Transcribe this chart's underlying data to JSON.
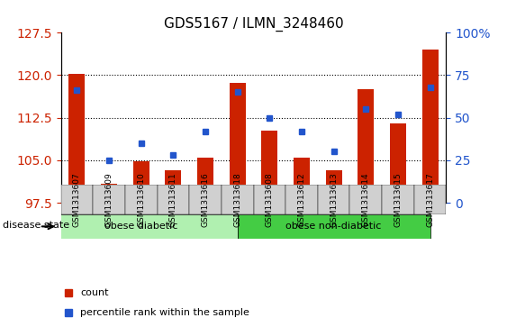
{
  "title": "GDS5167 / ILMN_3248460",
  "samples": [
    "GSM1313607",
    "GSM1313609",
    "GSM1313610",
    "GSM1313611",
    "GSM1313616",
    "GSM1313618",
    "GSM1313608",
    "GSM1313612",
    "GSM1313613",
    "GSM1313614",
    "GSM1313615",
    "GSM1313617"
  ],
  "bar_values": [
    120.3,
    100.8,
    104.8,
    103.2,
    105.5,
    118.6,
    110.2,
    105.5,
    103.2,
    117.5,
    111.5,
    124.5
  ],
  "percentile_values": [
    66,
    25,
    35,
    28,
    42,
    65,
    50,
    42,
    30,
    55,
    52,
    68
  ],
  "y_min": 97.5,
  "y_max": 127.5,
  "y_ticks": [
    97.5,
    105,
    112.5,
    120,
    127.5
  ],
  "y2_ticks": [
    0,
    25,
    50,
    75,
    100
  ],
  "bar_color": "#cc2200",
  "marker_color": "#2255cc",
  "background_color": "#ffffff",
  "tick_area_color": "#d0d0d0",
  "group1_label": "obese diabetic",
  "group2_label": "obese non-diabetic",
  "group1_indices": [
    0,
    1,
    2,
    3,
    4,
    5
  ],
  "group2_indices": [
    6,
    7,
    8,
    9,
    10,
    11
  ],
  "group1_color": "#b0f0b0",
  "group2_color": "#44cc44",
  "disease_label": "disease state",
  "legend_count": "count",
  "legend_percentile": "percentile rank within the sample"
}
